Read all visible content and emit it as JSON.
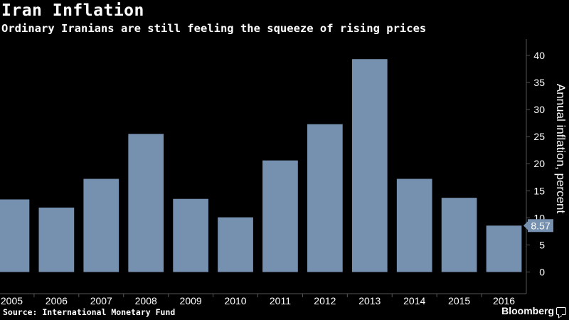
{
  "header": {
    "title": "Iran Inflation",
    "subtitle": "Ordinary Iranians are still feeling the squeeze of rising prices"
  },
  "footer": {
    "source": "Source: International Monetary Fund",
    "brand": "Bloomberg",
    "brand_icon": "speech-bubble-icon"
  },
  "colors": {
    "background": "#000000",
    "bar": "#7690b0",
    "text": "#ffffff",
    "grid": "#555555"
  },
  "chart_data": {
    "type": "bar",
    "categories": [
      "2005",
      "2006",
      "2007",
      "2008",
      "2009",
      "2010",
      "2011",
      "2012",
      "2013",
      "2014",
      "2015",
      "2016"
    ],
    "values": [
      13.4,
      11.9,
      17.2,
      25.5,
      13.5,
      10.1,
      20.6,
      27.3,
      39.3,
      17.2,
      13.7,
      8.57
    ],
    "last_value_label": "8.57",
    "ylabel": "Annual inflation, percent",
    "yticks": [
      0,
      5,
      10,
      15,
      20,
      25,
      30,
      35,
      40
    ],
    "ylim": [
      -4,
      43
    ],
    "grid": false,
    "y_axis_side": "right"
  }
}
